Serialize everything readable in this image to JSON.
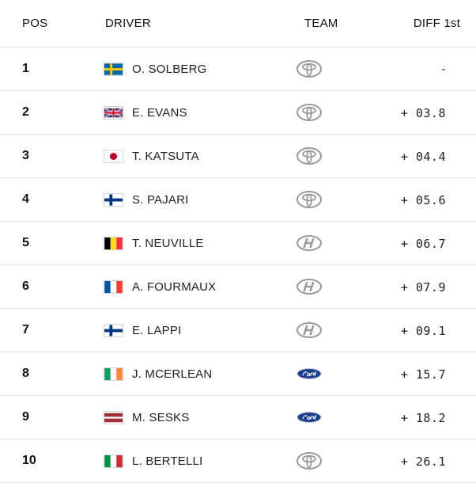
{
  "header": {
    "pos": "POS",
    "driver": "DRIVER",
    "team": "TEAM",
    "diff": "DIFF 1st"
  },
  "rows": [
    {
      "pos": "1",
      "driver": "O. SOLBERG",
      "flag": "sweden",
      "team_logo": "toyota-logo-icon",
      "diff": "-"
    },
    {
      "pos": "2",
      "driver": "E. EVANS",
      "flag": "united-kingdom",
      "team_logo": "toyota-logo-icon",
      "diff": "+ 03.8"
    },
    {
      "pos": "3",
      "driver": "T. KATSUTA",
      "flag": "japan",
      "team_logo": "toyota-logo-icon",
      "diff": "+ 04.4"
    },
    {
      "pos": "4",
      "driver": "S. PAJARI",
      "flag": "finland",
      "team_logo": "toyota-logo-icon",
      "diff": "+ 05.6"
    },
    {
      "pos": "5",
      "driver": "T. NEUVILLE",
      "flag": "belgium",
      "team_logo": "hyundai-logo-icon",
      "diff": "+ 06.7"
    },
    {
      "pos": "6",
      "driver": "A. FOURMAUX",
      "flag": "france",
      "team_logo": "hyundai-logo-icon",
      "diff": "+ 07.9"
    },
    {
      "pos": "7",
      "driver": "E. LAPPI",
      "flag": "finland",
      "team_logo": "hyundai-logo-icon",
      "diff": "+ 09.1"
    },
    {
      "pos": "8",
      "driver": "J. MCERLEAN",
      "flag": "ireland",
      "team_logo": "ford-logo-icon",
      "diff": "+ 15.7"
    },
    {
      "pos": "9",
      "driver": "M. SESKS",
      "flag": "latvia",
      "team_logo": "ford-logo-icon",
      "diff": "+ 18.2"
    },
    {
      "pos": "10",
      "driver": "L. BERTELLI",
      "flag": "italy",
      "team_logo": "toyota-logo-icon",
      "diff": "+ 26.1"
    }
  ],
  "colors": {
    "divider": "#e3e3e3",
    "text": "#1a1a1a",
    "ford_blue": "#1d3f8f",
    "logo_grey": "#9a9a9a"
  }
}
